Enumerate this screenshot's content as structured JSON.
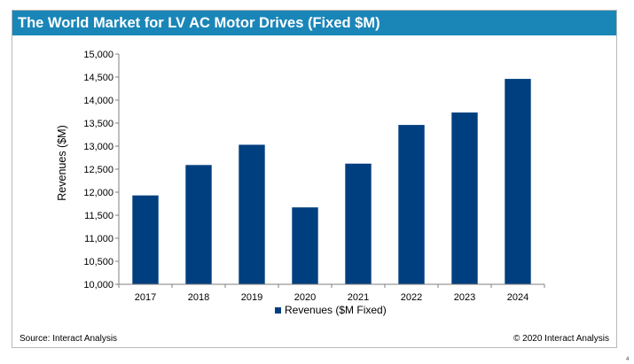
{
  "header": {
    "title": "The World Market for LV AC Motor Drives (Fixed $M)"
  },
  "footer": {
    "source": "Source: Interact Analysis",
    "copyright": "© 2020 Interact Analysis"
  },
  "page_number": "4",
  "colors": {
    "title_bar": "#1a86b8",
    "bar": "#003f7f"
  },
  "chart_data": {
    "type": "bar",
    "categories": [
      "2017",
      "2018",
      "2019",
      "2020",
      "2021",
      "2022",
      "2023",
      "2024"
    ],
    "series": [
      {
        "name": "Revenues ($M Fixed)",
        "values": [
          11930,
          12590,
          13030,
          11670,
          12620,
          13460,
          13730,
          14460
        ]
      }
    ],
    "xlabel": "",
    "ylabel": "Revenues ($M)",
    "ylim": [
      10000,
      15000
    ],
    "yticks": [
      "10,000",
      "10,500",
      "11,000",
      "11,500",
      "12,000",
      "12,500",
      "13,000",
      "13,500",
      "14,000",
      "14,500",
      "15,000"
    ],
    "grid": false,
    "legend": "bottom"
  }
}
